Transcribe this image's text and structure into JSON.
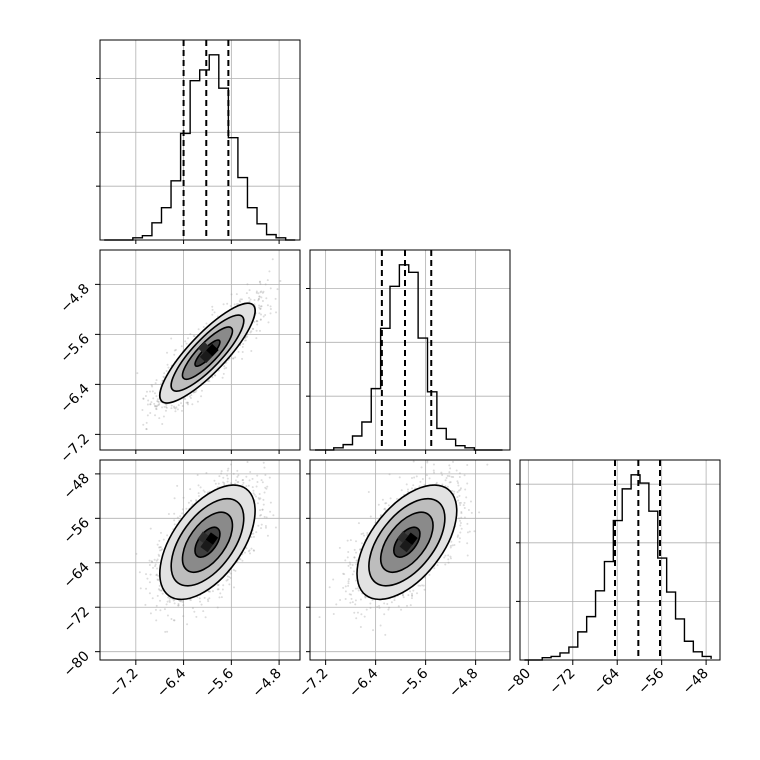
{
  "chart_data": {
    "type": "corner",
    "grid": true,
    "colors": {
      "line": "#000000",
      "grid": "#b0b0b0",
      "samples": "#9a9a9a",
      "contour_fills": [
        "#e2e2e2",
        "#bdbdbd",
        "#8a8a8a",
        "#3f3f3f"
      ]
    },
    "parameters": [
      {
        "range": [
          -7.8,
          -4.45
        ],
        "ticks": [
          -7.2,
          -6.4,
          -5.6,
          -4.8
        ],
        "tick_labels": [
          "−7.2",
          "−6.4",
          "−5.6",
          "−4.8"
        ],
        "quantiles": [
          -6.4,
          -6.02,
          -5.65
        ],
        "hist_bins": [
          -7.73,
          -7.57,
          -7.41,
          -7.25,
          -7.09,
          -6.93,
          -6.77,
          -6.61,
          -6.45,
          -6.29,
          -6.13,
          -5.97,
          -5.81,
          -5.65,
          -5.49,
          -5.33,
          -5.17,
          -5.01,
          -4.85,
          -4.69,
          -4.53
        ],
        "hist_counts": [
          0,
          0,
          0,
          2,
          4,
          16,
          30,
          55,
          99,
          148,
          158,
          172,
          141,
          95,
          58,
          30,
          15,
          5,
          2,
          0,
          0
        ]
      },
      {
        "range": [
          -7.45,
          -4.25
        ],
        "ticks": [
          -7.2,
          -6.4,
          -5.6,
          -4.8
        ],
        "tick_labels": [
          "−7.2",
          "−6.4",
          "−5.6",
          "−4.8"
        ],
        "quantiles": [
          -6.3,
          -5.93,
          -5.51
        ],
        "hist_bins": [
          -7.37,
          -7.22,
          -7.07,
          -6.92,
          -6.77,
          -6.62,
          -6.47,
          -6.32,
          -6.17,
          -6.02,
          -5.87,
          -5.72,
          -5.57,
          -5.42,
          -5.27,
          -5.12,
          -4.97,
          -4.82,
          -4.67,
          -4.52,
          -4.37
        ],
        "hist_counts": [
          0,
          0,
          2,
          5,
          13,
          26,
          57,
          113,
          152,
          172,
          165,
          104,
          54,
          20,
          10,
          4,
          2,
          0,
          0,
          0,
          0
        ]
      },
      {
        "range": [
          -81.5,
          -45.5
        ],
        "ticks": [
          -80,
          -72,
          -64,
          -56,
          -48
        ],
        "tick_labels": [
          "−80",
          "−72",
          "−64",
          "−56",
          "−48"
        ],
        "quantiles": [
          -64.4,
          -60.2,
          -56.3
        ],
        "hist_bins": [
          -80.7,
          -79.1,
          -77.5,
          -75.9,
          -74.3,
          -72.7,
          -71.1,
          -69.5,
          -67.9,
          -66.3,
          -64.7,
          -63.1,
          -61.5,
          -59.9,
          -58.3,
          -56.7,
          -55.1,
          -53.5,
          -51.9,
          -50.3,
          -48.7,
          -47.1
        ],
        "hist_counts": [
          0,
          0,
          2,
          3,
          6,
          11,
          24,
          37,
          59,
          84,
          119,
          146,
          158,
          151,
          127,
          87,
          58,
          35,
          16,
          7,
          3,
          1
        ]
      }
    ],
    "hist_y_ticks": [
      [
        50,
        100,
        150
      ],
      [
        50,
        100,
        150
      ],
      [
        50,
        100,
        150
      ]
    ],
    "pairs": [
      {
        "row": 1,
        "col": 0,
        "mean": [
          -6.0,
          -5.9
        ],
        "sd": [
          0.38,
          0.38
        ],
        "rho": 0.85,
        "n": 2200,
        "seed": 11
      },
      {
        "row": 2,
        "col": 0,
        "mean": [
          -6.0,
          -60.3
        ],
        "sd": [
          0.38,
          4.9
        ],
        "rho": 0.55,
        "n": 2200,
        "seed": 23
      },
      {
        "row": 2,
        "col": 1,
        "mean": [
          -5.9,
          -60.3
        ],
        "sd": [
          0.38,
          4.9
        ],
        "rho": 0.55,
        "n": 2200,
        "seed": 37
      }
    ]
  }
}
